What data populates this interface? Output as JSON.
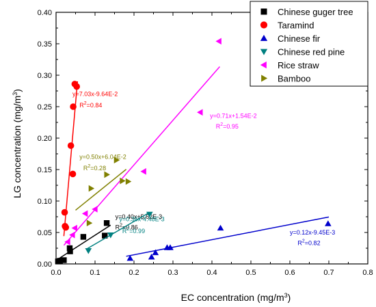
{
  "chart_data": {
    "type": "scatter",
    "xlabel": "EC concentration (mg/m",
    "xlabel_sup": "3",
    "xlabel_end": ")",
    "ylabel": "LG concentration (mg/m",
    "ylabel_sup": "3",
    "ylabel_end": ")",
    "xlim": [
      0.0,
      0.8
    ],
    "ylim": [
      0.0,
      0.4
    ],
    "xticks": [
      "0.0",
      "0.1",
      "0.2",
      "0.3",
      "0.4",
      "0.5",
      "0.6",
      "0.7",
      "0.8"
    ],
    "yticks": [
      "0.00",
      "0.05",
      "0.10",
      "0.15",
      "0.20",
      "0.25",
      "0.30",
      "0.35",
      "0.40"
    ],
    "legend_position": "top-right",
    "series": [
      {
        "name": "Chinese guger tree",
        "color": "#000000",
        "marker": "square",
        "points": [
          [
            0.005,
            0.004
          ],
          [
            0.01,
            0.005
          ],
          [
            0.02,
            0.006
          ],
          [
            0.035,
            0.025
          ],
          [
            0.036,
            0.02
          ],
          [
            0.07,
            0.043
          ],
          [
            0.125,
            0.045
          ],
          [
            0.13,
            0.065
          ]
        ],
        "fit": {
          "slope": 0.4,
          "intercept": 0.00562,
          "x_range": [
            0.0,
            0.14
          ]
        },
        "eq_line1": "y=0.40x+5.62E-3",
        "eq_line2_prefix": "R",
        "eq_line2_sup": "2",
        "eq_line2_suffix": "=0.86"
      },
      {
        "name": "Taramind",
        "color": "#ff0000",
        "marker": "circle",
        "points": [
          [
            0.022,
            0.082
          ],
          [
            0.023,
            0.06
          ],
          [
            0.025,
            0.058
          ],
          [
            0.038,
            0.188
          ],
          [
            0.043,
            0.143
          ],
          [
            0.044,
            0.25
          ],
          [
            0.048,
            0.286
          ],
          [
            0.053,
            0.282
          ]
        ],
        "fit": {
          "slope": 7.03,
          "intercept": -0.0964,
          "x_range": [
            0.02,
            0.055
          ]
        },
        "eq_line1": "y=7.03x-9.64E-2",
        "eq_line2_prefix": "R",
        "eq_line2_sup": "2",
        "eq_line2_suffix": "=0.84"
      },
      {
        "name": "Chinese fir",
        "color": "#0000cc",
        "marker": "triangle-up",
        "points": [
          [
            0.19,
            0.009
          ],
          [
            0.245,
            0.011
          ],
          [
            0.255,
            0.018
          ],
          [
            0.285,
            0.026
          ],
          [
            0.293,
            0.026
          ],
          [
            0.422,
            0.057
          ],
          [
            0.698,
            0.064
          ]
        ],
        "fit": {
          "slope": 0.12,
          "intercept": -0.00945,
          "x_range": [
            0.18,
            0.7
          ]
        },
        "eq_line1": "y=0.12x-9.45E-3",
        "eq_line2_prefix": "R",
        "eq_line2_sup": "2",
        "eq_line2_suffix": "=0.82"
      },
      {
        "name": "Chinese red pine",
        "color": "#008080",
        "marker": "triangle-down",
        "points": [
          [
            0.083,
            0.021
          ],
          [
            0.14,
            0.046
          ],
          [
            0.24,
            0.079
          ]
        ],
        "fit": {
          "slope": 0.36,
          "intercept": -0.00448,
          "x_range": [
            0.08,
            0.24
          ]
        },
        "eq_line1": "y=0.36x-4.48E-3",
        "eq_line2_prefix": "R",
        "eq_line2_sup": "2",
        "eq_line2_suffix": "=0.99"
      },
      {
        "name": "Rice straw",
        "color": "#ff00ff",
        "marker": "triangle-left",
        "points": [
          [
            0.03,
            0.035
          ],
          [
            0.042,
            0.046
          ],
          [
            0.048,
            0.057
          ],
          [
            0.075,
            0.08
          ],
          [
            0.1,
            0.087
          ],
          [
            0.225,
            0.147
          ],
          [
            0.37,
            0.241
          ],
          [
            0.418,
            0.354
          ]
        ],
        "fit": {
          "slope": 0.71,
          "intercept": 0.0154,
          "x_range": [
            0.02,
            0.42
          ]
        },
        "eq_line1": "y=0.71x+1.54E-2",
        "eq_line2_prefix": "R",
        "eq_line2_sup": "2",
        "eq_line2_suffix": "=0.95"
      },
      {
        "name": "Bamboo",
        "color": "#808000",
        "marker": "triangle-right",
        "points": [
          [
            0.085,
            0.065
          ],
          [
            0.09,
            0.12
          ],
          [
            0.13,
            0.142
          ],
          [
            0.155,
            0.165
          ],
          [
            0.17,
            0.132
          ],
          [
            0.185,
            0.131
          ]
        ],
        "fit": {
          "slope": 0.5,
          "intercept": 0.0604,
          "x_range": [
            0.05,
            0.18
          ]
        },
        "eq_line1": "y=0.50x+6.04E-2",
        "eq_line2_prefix": "R",
        "eq_line2_sup": "2",
        "eq_line2_suffix": "=0.28"
      }
    ]
  }
}
